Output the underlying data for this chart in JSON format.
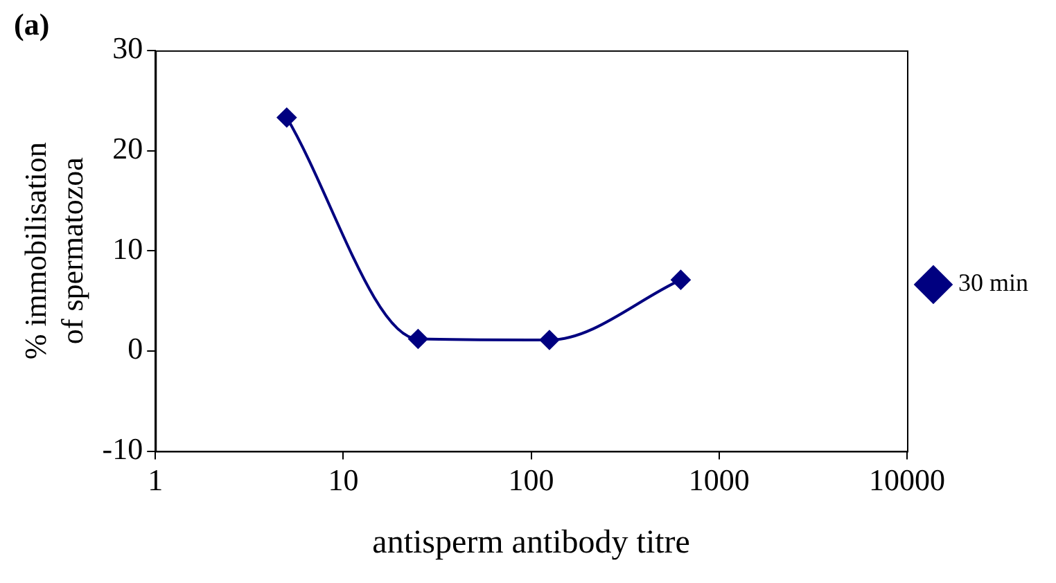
{
  "chart_data": {
    "type": "line",
    "title": "(a)",
    "xlabel": "antisperm antibody titre",
    "ylabel": "% immobilisation of spermatozoa",
    "x": [
      5,
      25,
      125,
      625
    ],
    "series": [
      {
        "name": "30 min",
        "color": "#000080",
        "values": [
          23.3,
          1.2,
          1.1,
          7.1
        ]
      }
    ],
    "xlim": [
      1,
      10000
    ],
    "xticks": [
      1,
      10,
      100,
      1000,
      10000
    ],
    "ylim": [
      -10,
      30
    ],
    "yticks": [
      -10,
      0,
      10,
      20,
      30
    ],
    "log": "x",
    "grid": false,
    "legend": "right",
    "marker": "diamond",
    "line_style": "solid"
  }
}
